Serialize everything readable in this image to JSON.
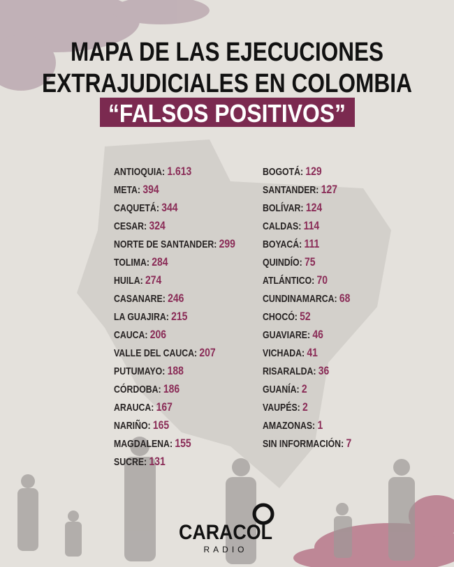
{
  "header": {
    "title_line_1": "MAPA DE LAS EJECUCIONES",
    "title_line_2": "EXTRAJUDICIALES EN COLOMBIA",
    "subtitle": "“FALSOS POSITIVOS”"
  },
  "list": {
    "left": [
      {
        "name": "ANTIOQUIA:",
        "value": "1.613"
      },
      {
        "name": "META:",
        "value": 394
      },
      {
        "name": "CAQUETÁ:",
        "value": 344
      },
      {
        "name": "CESAR:",
        "value": 324
      },
      {
        "name": "NORTE DE SANTANDER:",
        "value": 299
      },
      {
        "name": "TOLIMA:",
        "value": 284
      },
      {
        "name": "HUILA:",
        "value": 274
      },
      {
        "name": "CASANARE:",
        "value": 246
      },
      {
        "name": "LA GUAJIRA:",
        "value": 215
      },
      {
        "name": "CAUCA:",
        "value": 206
      },
      {
        "name": "VALLE DEL CAUCA:",
        "value": 207
      },
      {
        "name": "PUTUMAYO:",
        "value": 188
      },
      {
        "name": "CÓRDOBA:",
        "value": 186
      },
      {
        "name": "ARAUCA:",
        "value": 167
      },
      {
        "name": "NARIÑO:",
        "value": 165
      },
      {
        "name": "MAGDALENA:",
        "value": 155
      },
      {
        "name": "SUCRE:",
        "value": 131
      }
    ],
    "right": [
      {
        "name": "BOGOTÁ:",
        "value": 129
      },
      {
        "name": "SANTANDER:",
        "value": 127
      },
      {
        "name": "BOLÍVAR:",
        "value": 124
      },
      {
        "name": "CALDAS:",
        "value": 114
      },
      {
        "name": "BOYACÁ:",
        "value": 111
      },
      {
        "name": "QUINDÍO:",
        "value": 75
      },
      {
        "name": "ATLÁNTICO:",
        "value": 70
      },
      {
        "name": "CUNDINAMARCA:",
        "value": 68
      },
      {
        "name": "CHOCÓ:",
        "value": 52
      },
      {
        "name": "GUAVIARE:",
        "value": 46
      },
      {
        "name": "VICHADA:",
        "value": 41
      },
      {
        "name": "RISARALDA:",
        "value": 36
      },
      {
        "name": "GUANÍA:",
        "value": 2
      },
      {
        "name": "VAUPÉS:",
        "value": 2
      },
      {
        "name": "AMAZONAS:",
        "value": 1
      },
      {
        "name": "SIN INFORMACIÓN:",
        "value": 7
      }
    ]
  },
  "logo": {
    "name": "CARACOL",
    "sub": "RADIO"
  }
}
